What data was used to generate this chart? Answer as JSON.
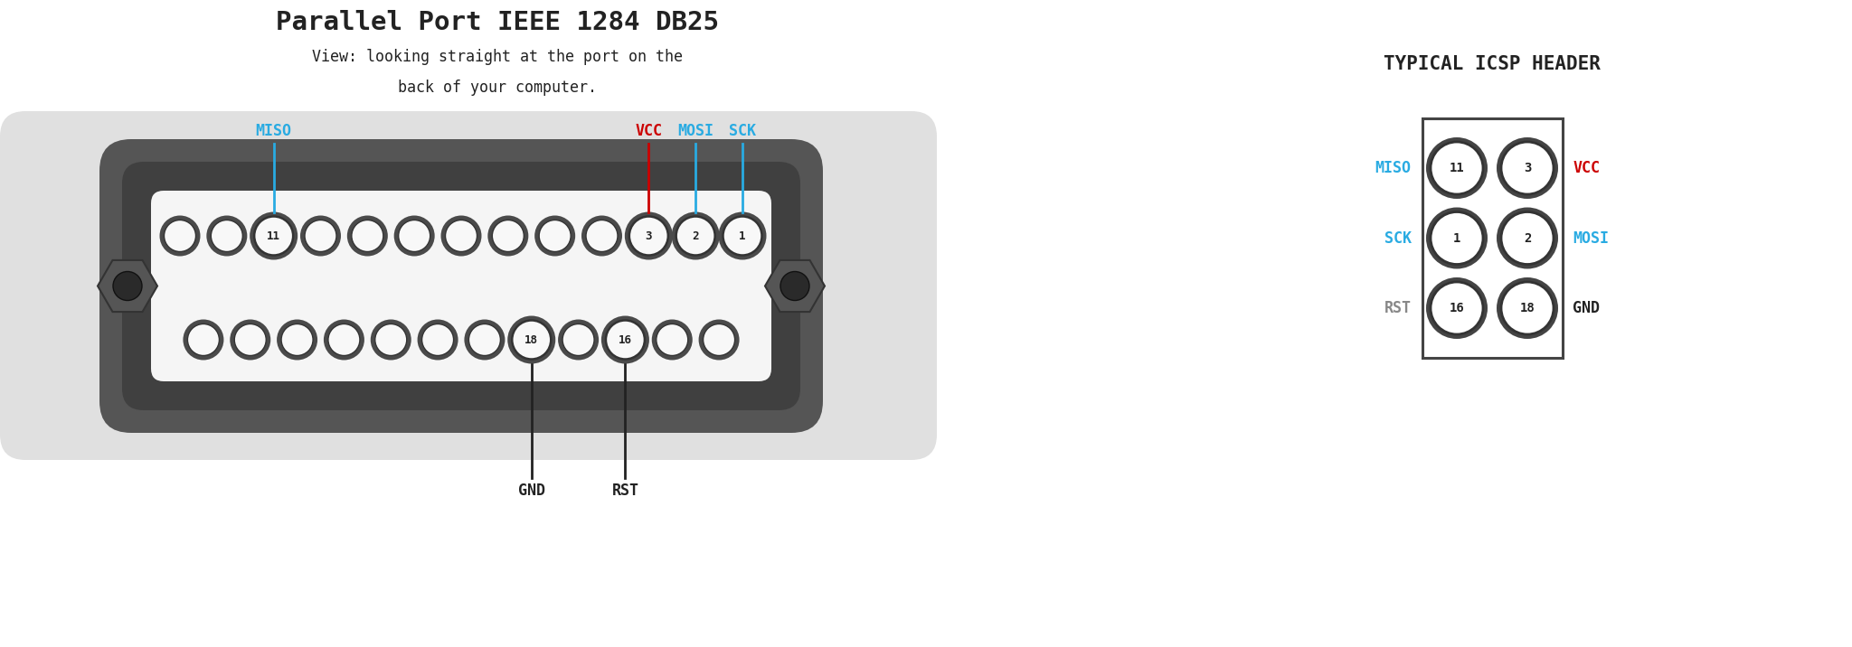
{
  "title": "Parallel Port IEEE 1284 DB25",
  "subtitle_line1": "View: looking straight at the port on the",
  "subtitle_line2": "back of your computer.",
  "icsp_title": "TYPICAL ICSP HEADER",
  "bg_color": "#ffffff",
  "cyan_color": "#29abe2",
  "red_color": "#cc0000",
  "gray_color": "#888888",
  "black_color": "#222222",
  "panel_color": "#e0e0e0",
  "connector_outer": "#555555",
  "connector_mid": "#404040",
  "connector_face": "#f5f5f5",
  "hole_shadow": "#4a4a4a",
  "hole_fill": "#f8f8f8",
  "hole_edge": "#333333",
  "labeled_top": [
    "11",
    "3",
    "2",
    "1"
  ],
  "labeled_bottom": [
    "18",
    "16"
  ],
  "icsp_labels_left": [
    "MISO",
    "SCK",
    "RST"
  ],
  "icsp_labels_right": [
    "VCC",
    "MOSI",
    "GND"
  ],
  "icsp_label_colors_left": [
    "#29abe2",
    "#29abe2",
    "#888888"
  ],
  "icsp_label_colors_right": [
    "#cc0000",
    "#29abe2",
    "#222222"
  ]
}
